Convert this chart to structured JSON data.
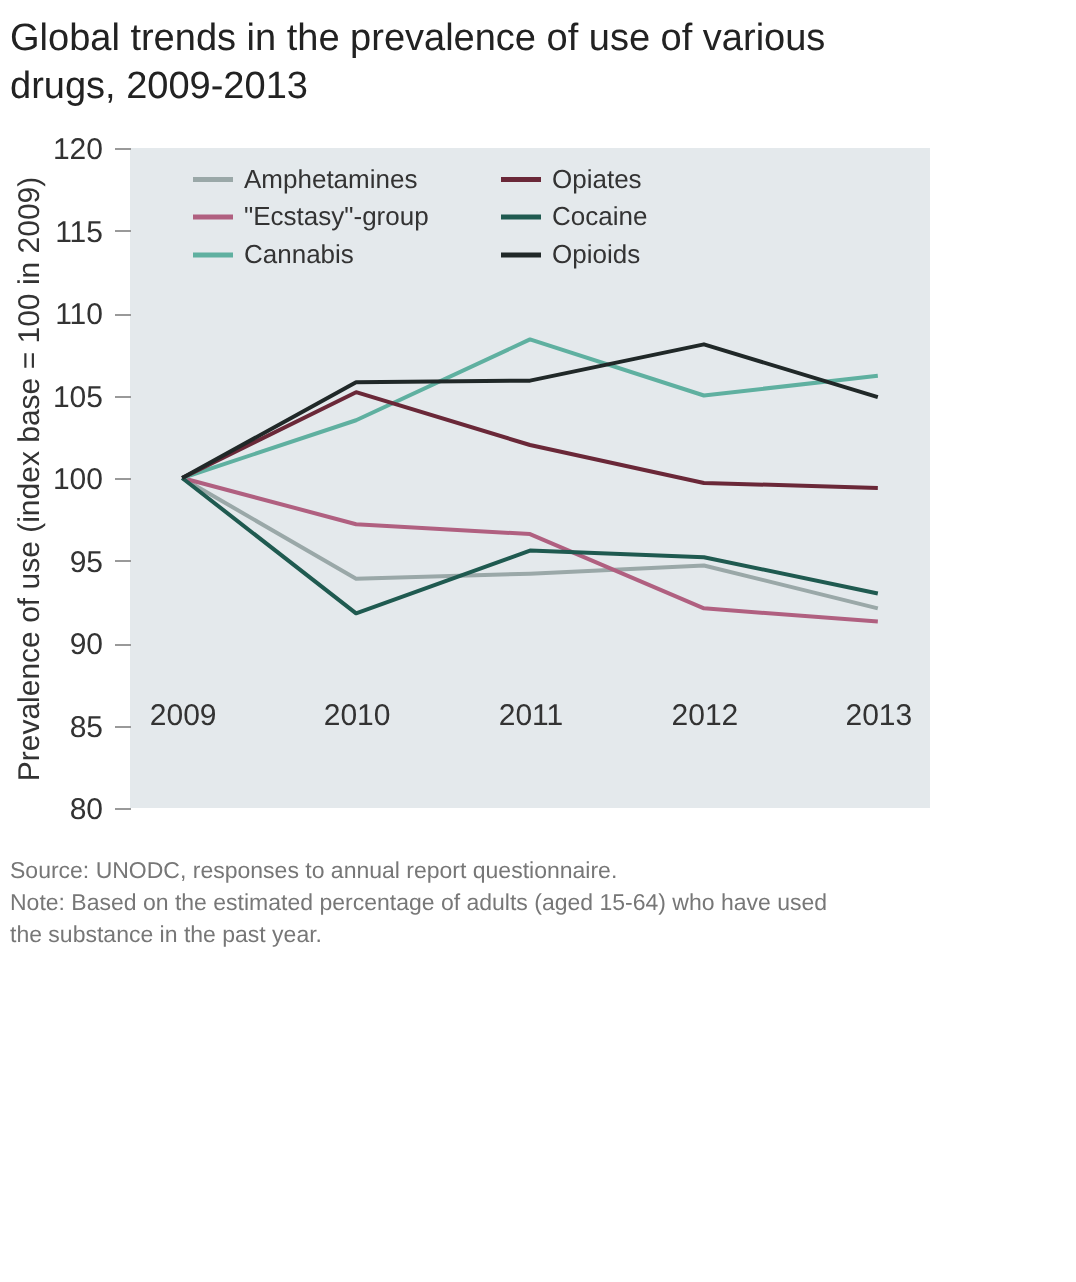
{
  "chart_data": {
    "type": "line",
    "title": "Global trends in the prevalence of use of various drugs, 2009-2013",
    "ylabel": "Prevalence of use (index base = 100 in 2009)",
    "categories": [
      "2009",
      "2010",
      "2011",
      "2012",
      "2013"
    ],
    "series": [
      {
        "name": "Amphetamines",
        "color": "#9aa8a8",
        "values": [
          100,
          93.9,
          94.2,
          94.7,
          92.1
        ]
      },
      {
        "name": "\"Ecstasy\"-group",
        "color": "#b06080",
        "values": [
          100,
          97.2,
          96.6,
          92.1,
          91.3
        ]
      },
      {
        "name": "Cannabis",
        "color": "#5fb0a0",
        "values": [
          100,
          103.5,
          108.4,
          105.0,
          106.2
        ]
      },
      {
        "name": "Opiates",
        "color": "#6a2838",
        "values": [
          100,
          105.2,
          102.0,
          99.7,
          99.4
        ]
      },
      {
        "name": "Cocaine",
        "color": "#1f5a50",
        "values": [
          100,
          91.8,
          95.6,
          95.2,
          93.0
        ]
      },
      {
        "name": "Opioids",
        "color": "#202828",
        "values": [
          100,
          105.8,
          105.9,
          108.1,
          104.9
        ]
      }
    ],
    "ylim": [
      80,
      120
    ],
    "yticks": [
      80,
      85,
      90,
      95,
      100,
      105,
      110,
      115,
      120
    ],
    "legend": "top",
    "marker": "none",
    "line_style": "solid",
    "annotations": [
      "Source: UNODC, responses to annual report questionnaire.",
      "Note: Based on the estimated percentage of adults (aged 15-64) who have used the substance in the past year."
    ]
  }
}
